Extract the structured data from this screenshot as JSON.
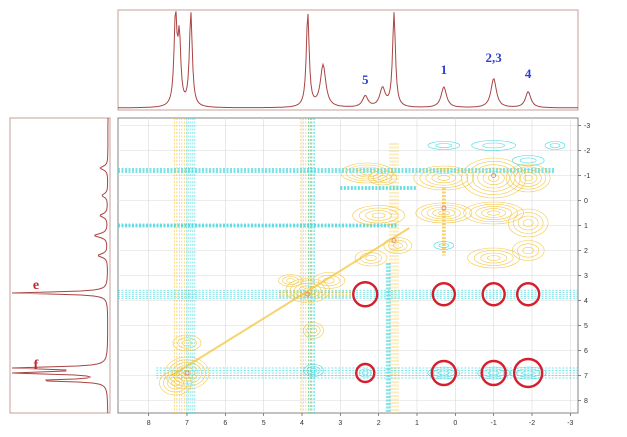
{
  "chart_data": {
    "type": "heatmap",
    "title": "",
    "xlabel": "",
    "ylabel": "",
    "x_axis_reversed": true,
    "y_axis_downward_increasing": true,
    "xlim": [
      8.8,
      -3.2
    ],
    "ylim": [
      -3.3,
      8.5
    ],
    "x_ticks": [
      "8",
      "7",
      "6",
      "5",
      "4",
      "3",
      "2",
      "1",
      "0",
      "-1",
      "-2",
      "-3"
    ],
    "y_ticks": [
      "-3",
      "-2",
      "-1",
      "0",
      "1",
      "2",
      "3",
      "4",
      "5",
      "6",
      "7",
      "8"
    ],
    "grid": true,
    "colors": {
      "positive_contours": "#f3c233",
      "negative_contours": "#39d4dc",
      "projection_line": "#a94442",
      "circles": "#d61f2c",
      "peak_label": "#2a3fd6",
      "projection_label": "#c0262c"
    },
    "top_projection_labels": [
      {
        "text": "5",
        "x": 2.35
      },
      {
        "text": "1",
        "x": 0.3
      },
      {
        "text": "2,3",
        "x": -1.0
      },
      {
        "text": "4",
        "x": -1.9
      }
    ],
    "left_projection_labels": [
      {
        "text": "e",
        "y": 3.7
      },
      {
        "text": "f",
        "y": 6.9
      }
    ],
    "top_projection_peaks": [
      {
        "x": 7.3,
        "height": 0.94
      },
      {
        "x": 7.2,
        "height": 0.7
      },
      {
        "x": 6.9,
        "height": 1.0
      },
      {
        "x": 3.85,
        "height": 1.0
      },
      {
        "x": 3.45,
        "height": 0.45
      },
      {
        "x": 2.35,
        "height": 0.12
      },
      {
        "x": 1.9,
        "height": 0.2
      },
      {
        "x": 1.6,
        "height": 1.0
      },
      {
        "x": 0.3,
        "height": 0.22
      },
      {
        "x": -1.0,
        "height": 0.31
      },
      {
        "x": -1.9,
        "height": 0.17
      }
    ],
    "left_projection_peaks": [
      {
        "y": -1.3,
        "height": 0.08
      },
      {
        "y": -0.2,
        "height": 0.06
      },
      {
        "y": 0.6,
        "height": 0.08
      },
      {
        "y": 1.4,
        "height": 0.14
      },
      {
        "y": 2.2,
        "height": 0.1
      },
      {
        "y": 3.7,
        "height": 1.0
      },
      {
        "y": 6.7,
        "height": 1.0
      },
      {
        "y": 6.9,
        "height": 1.0
      },
      {
        "y": 7.2,
        "height": 0.7
      }
    ],
    "highlighted_cross_peaks": [
      {
        "x": 2.35,
        "y": 3.75
      },
      {
        "x": 0.3,
        "y": 3.75
      },
      {
        "x": -1.0,
        "y": 3.75
      },
      {
        "x": -1.9,
        "y": 3.75
      },
      {
        "x": 2.35,
        "y": 6.9
      },
      {
        "x": 0.3,
        "y": 6.9
      },
      {
        "x": -1.0,
        "y": 6.9
      },
      {
        "x": -1.9,
        "y": 6.9
      }
    ]
  }
}
